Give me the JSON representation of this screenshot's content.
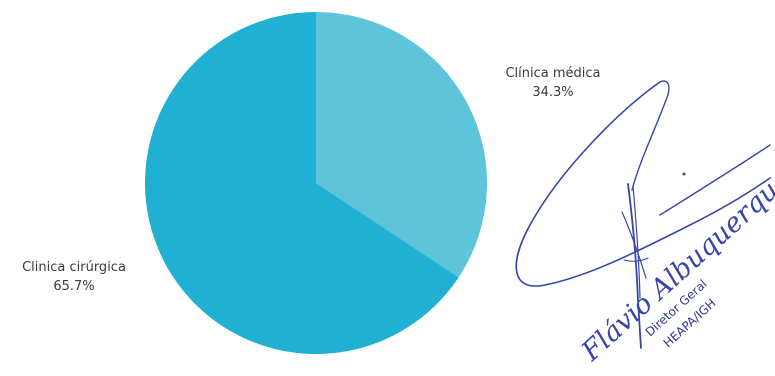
{
  "chart_data": {
    "type": "pie",
    "slices": [
      {
        "label": "Clínica médica",
        "value_label": "34.3%",
        "value": 34.3,
        "color": "#5ec4dc"
      },
      {
        "label": "Clinica cirúrgica",
        "value_label": "65.7%",
        "value": 65.7,
        "color": "#1fb0d3"
      }
    ],
    "start": "12 o'clock",
    "direction": "clockwise",
    "legend": "none"
  },
  "signature": {
    "name": "Flávio Albuquerque",
    "role": "Diretor Geral",
    "org": "HEAPA/IGH",
    "ink_color": "#3845a8"
  }
}
